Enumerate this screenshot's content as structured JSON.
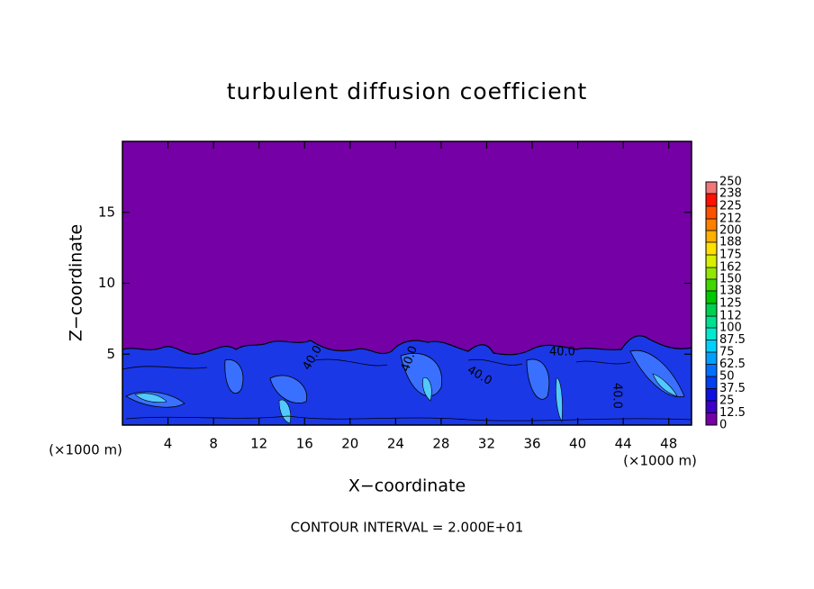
{
  "chart_data": {
    "type": "contour",
    "title": "turbulent diffusion coefficient",
    "xlabel": "X−coordinate",
    "ylabel": "Z−coordinate",
    "x_unit": "(×1000 m)",
    "x_unit_right": "(×1000 m)",
    "footnote": "CONTOUR INTERVAL = 2.000E+01",
    "xlim": [
      0,
      50
    ],
    "ylim": [
      0,
      20
    ],
    "xticks": [
      4,
      8,
      12,
      16,
      20,
      24,
      28,
      32,
      36,
      40,
      44,
      48
    ],
    "yticks": [
      5,
      10,
      15
    ],
    "contour_labels": [
      "40.0",
      "40.0",
      "40.0",
      "40.0",
      "40.0"
    ],
    "colorbar": {
      "levels": [
        0,
        12.5,
        25,
        37.5,
        50,
        62.5,
        75,
        87.5,
        100,
        112,
        125,
        138,
        150,
        162,
        175,
        188,
        200,
        212,
        225,
        238,
        250
      ],
      "colors": [
        "#7400a6",
        "#3c00c8",
        "#1010e0",
        "#0040f0",
        "#0070ff",
        "#00a0ff",
        "#00d0ff",
        "#00e8d0",
        "#00e090",
        "#00d050",
        "#00c800",
        "#40d800",
        "#90e800",
        "#d8f000",
        "#ffe000",
        "#ffb000",
        "#ff8000",
        "#ff5000",
        "#ff1000",
        "#f07878"
      ]
    }
  }
}
